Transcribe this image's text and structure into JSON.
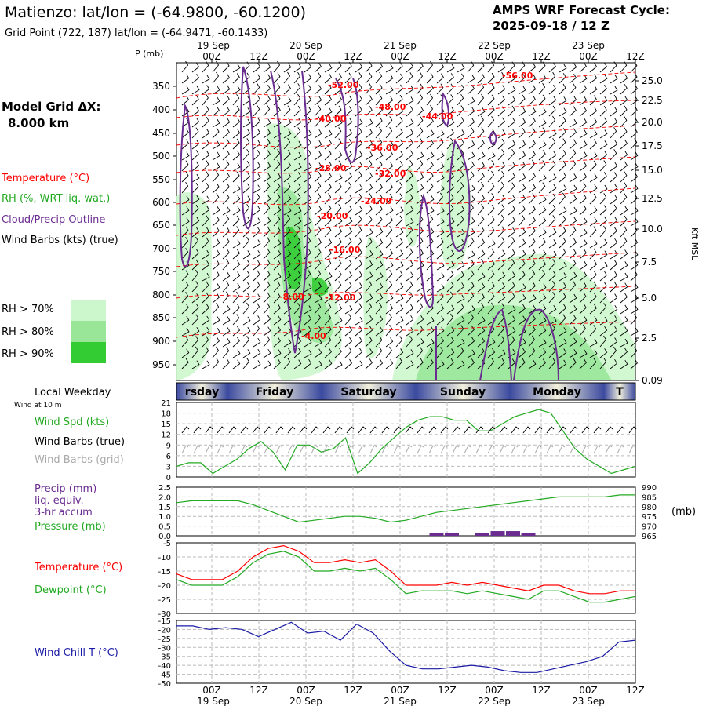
{
  "header": {
    "station_line": "Matienzo:  lat/lon = (-64.9800, -60.1200)",
    "grid_line": "Grid Point (722, 187) lat/lon = (-64.9471, -60.1433)",
    "cycle_title": "AMPS WRF Forecast Cycle:",
    "cycle_value": "2025-09-18 / 12  Z"
  },
  "left_labels": {
    "model_grid": "Model Grid ΔX:",
    "grid_dx": "8.000 km",
    "temperature": "Temperature (°C)",
    "rh": "RH (%, WRT liq. wat.)",
    "cloud": "Cloud/Precip Outline",
    "wind_barbs": "Wind Barbs (kts) (true)",
    "rh70": "RH > 70%",
    "rh80": "RH > 80%",
    "rh90": "RH > 90%",
    "p_label": "P (mb)",
    "kft_label": "Kft MSL",
    "local_weekday": "Local Weekday",
    "wind_10m": "Wind at 10 m",
    "wind_spd": "Wind Spd (kts)",
    "barbs_true": "Wind Barbs (true)",
    "barbs_grid": "Wind Barbs (grid)",
    "precip1": "Precip (mm)",
    "precip2": "liq. equiv.",
    "precip3": "3-hr accum",
    "pressure": "Pressure (mb)",
    "mb_unit": "(mb)",
    "temp2": "Temperature (°C)",
    "dewpoint": "Dewpoint (°C)",
    "windchill": "Wind Chill T (°C)"
  },
  "colors": {
    "temperature": "#ff0000",
    "rh": "#22aa22",
    "cloud": "#6a2c91",
    "wind": "#000000",
    "grid_barbs": "#aaaaaa",
    "windchill": "#1a1aa6",
    "rh70": "#ccf7cc",
    "rh80": "#99e699",
    "rh90": "#33cc33"
  },
  "chart_data": {
    "time_axis": {
      "labels": [
        "00Z",
        "12Z",
        "00Z",
        "12Z",
        "00Z",
        "12Z",
        "00Z",
        "12Z",
        "00Z",
        "12Z"
      ],
      "date_labels": [
        "19 Sep",
        "20 Sep",
        "21 Sep",
        "22 Sep",
        "23 Sep"
      ],
      "weekdays": [
        "rsday",
        "Friday",
        "Saturday",
        "Sunday",
        "Monday",
        "T"
      ]
    },
    "cross_section": {
      "type": "heatmap",
      "pressure_ticks": [
        "350",
        "400",
        "450",
        "500",
        "550",
        "600",
        "650",
        "700",
        "750",
        "800",
        "850",
        "900",
        "950"
      ],
      "height_ticks": [
        "25.0",
        "22.5",
        "20.0",
        "17.5",
        "15.0",
        "12.5",
        "10.0",
        "7.5",
        "5.0",
        "2.5",
        "0.09"
      ],
      "temp_labels": [
        "-52.00",
        "-56.00",
        "-48.00",
        "-44.00",
        "-40.00",
        "-36.00",
        "-28.00",
        "-32.00",
        "-24.00",
        "-20.00",
        "-16.00",
        "-8.00",
        "-12.00",
        "-4.00"
      ]
    },
    "wind_speed": {
      "type": "line",
      "yticks": [
        "21",
        "18",
        "15",
        "12",
        "9",
        "6",
        "3",
        "0"
      ],
      "ylim": [
        0,
        21
      ],
      "values": [
        3,
        4,
        4,
        1,
        3,
        5,
        8,
        10,
        7,
        2,
        9,
        9,
        7,
        8,
        11,
        1,
        4,
        8,
        11,
        14,
        16,
        17,
        17,
        16,
        16,
        13,
        13,
        15,
        17,
        18,
        19,
        18,
        13,
        8,
        5,
        3,
        1,
        2,
        3
      ]
    },
    "pressure": {
      "type": "line",
      "yticks_left": [
        "2.5",
        "2.0",
        "1.5",
        "1.0",
        "0.5",
        "0.0"
      ],
      "yticks_right": [
        "990",
        "985",
        "980",
        "975",
        "970",
        "965"
      ],
      "ylim": [
        965,
        990
      ],
      "values": [
        982,
        983,
        983,
        983,
        983,
        981,
        978,
        975,
        972,
        973,
        974,
        975,
        975,
        974,
        972,
        973,
        975,
        977,
        978,
        979,
        980,
        981,
        982,
        983,
        984,
        985,
        985,
        985,
        985,
        986,
        986
      ],
      "precip": [
        0,
        0,
        0,
        0,
        0,
        0,
        0,
        0,
        0,
        0,
        0,
        0,
        0,
        0,
        0,
        0,
        0,
        0.1,
        0.1,
        0,
        0.1,
        0.2,
        0.2,
        0.1,
        0,
        0,
        0,
        0,
        0,
        0,
        0
      ]
    },
    "temperature": {
      "type": "line",
      "yticks": [
        "-5",
        "-10",
        "-15",
        "-20",
        "-25",
        "-30"
      ],
      "ylim": [
        -30,
        -5
      ],
      "temp": [
        -16,
        -18,
        -18,
        -18,
        -15,
        -10,
        -7,
        -6,
        -8,
        -12,
        -12,
        -11,
        -12,
        -11,
        -15,
        -20,
        -20,
        -20,
        -19,
        -20,
        -19,
        -20,
        -21,
        -22,
        -20,
        -20,
        -22,
        -23,
        -23,
        -22,
        -22
      ],
      "dew": [
        -18,
        -20,
        -20,
        -20,
        -17,
        -12,
        -9,
        -8,
        -10,
        -15,
        -15,
        -14,
        -15,
        -14,
        -18,
        -23,
        -22,
        -22,
        -22,
        -23,
        -22,
        -23,
        -24,
        -25,
        -22,
        -22,
        -24,
        -26,
        -26,
        -25,
        -24
      ]
    },
    "windchill": {
      "type": "line",
      "yticks": [
        "-15",
        "-20",
        "-25",
        "-30",
        "-35",
        "-40",
        "-45",
        "-50"
      ],
      "ylim": [
        -50,
        -15
      ],
      "values": [
        -18,
        -18,
        -20,
        -19,
        -20,
        -24,
        -20,
        -16,
        -22,
        -21,
        -26,
        -17,
        -22,
        -32,
        -40,
        -42,
        -42,
        -41,
        -40,
        -41,
        -43,
        -44,
        -44,
        -42,
        -40,
        -38,
        -35,
        -27,
        -26
      ]
    }
  }
}
